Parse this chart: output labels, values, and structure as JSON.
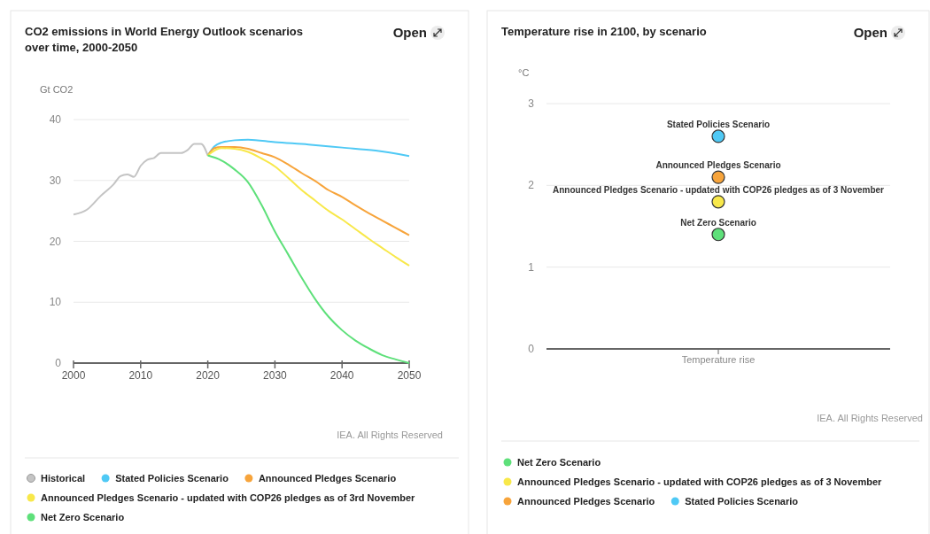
{
  "chart_data": [
    {
      "type": "line",
      "title": "CO2 emissions in World Energy Outlook scenarios over time, 2000-2050",
      "ylabel": "Gt CO2",
      "annotations": [
        "Open",
        "IEA. All Rights Reserved"
      ],
      "xlim": [
        2000,
        2050
      ],
      "xticks": [
        2000,
        2010,
        2020,
        2030,
        2040,
        2050
      ],
      "ylim": [
        0,
        40
      ],
      "yticks": [
        0,
        10,
        20,
        30,
        40
      ],
      "grid": "y",
      "legend": "bottom",
      "marker": "none",
      "line_style": "solid",
      "series": [
        {
          "name": "Historical",
          "color": "#c4c4c4",
          "x": [
            2000,
            2002,
            2004,
            2006,
            2007,
            2008,
            2009,
            2010,
            2011,
            2012,
            2013,
            2014,
            2015,
            2016,
            2017,
            2018,
            2019,
            2020
          ],
          "values": [
            24.4,
            25.2,
            27.4,
            29.4,
            30.7,
            31.0,
            30.6,
            32.4,
            33.4,
            33.7,
            34.5,
            34.5,
            34.5,
            34.5,
            35.0,
            36.0,
            36.0,
            34.1
          ]
        },
        {
          "name": "Stated Policies Scenario",
          "color": "#4fc9f5",
          "x": [
            2020,
            2021,
            2022,
            2024,
            2026,
            2030,
            2035,
            2040,
            2045,
            2050
          ],
          "values": [
            34.1,
            35.6,
            36.2,
            36.6,
            36.7,
            36.3,
            35.9,
            35.4,
            34.9,
            34.0
          ]
        },
        {
          "name": "Announced Pledges Scenario",
          "color": "#f7a43b",
          "x": [
            2020,
            2021,
            2022,
            2024,
            2026,
            2028,
            2030,
            2032,
            2034,
            2036,
            2038,
            2040,
            2042,
            2044,
            2046,
            2048,
            2050
          ],
          "values": [
            34.1,
            35.3,
            35.5,
            35.5,
            35.2,
            34.5,
            33.8,
            32.6,
            31.2,
            29.9,
            28.4,
            27.3,
            25.9,
            24.6,
            23.4,
            22.2,
            21.0
          ]
        },
        {
          "name": "Announced Pledges Scenario - updated with COP26 pledges as of 3rd November",
          "color": "#f8e84a",
          "x": [
            2020,
            2022,
            2024,
            2026,
            2028,
            2030,
            2032,
            2034,
            2036,
            2038,
            2040,
            2042,
            2044,
            2046,
            2048,
            2050
          ],
          "values": [
            34.1,
            35.3,
            35.2,
            34.7,
            33.6,
            32.3,
            30.4,
            28.4,
            26.7,
            25.0,
            23.6,
            22.0,
            20.4,
            18.9,
            17.4,
            16.0
          ]
        },
        {
          "name": "Net Zero Scenario",
          "color": "#5ee07a",
          "x": [
            2020,
            2022,
            2024,
            2026,
            2028,
            2030,
            2032,
            2034,
            2036,
            2038,
            2040,
            2042,
            2044,
            2046,
            2048,
            2050
          ],
          "values": [
            34.1,
            33.3,
            31.8,
            29.7,
            26.0,
            21.6,
            17.8,
            14.0,
            10.5,
            7.6,
            5.4,
            3.7,
            2.4,
            1.3,
            0.6,
            0
          ]
        }
      ]
    },
    {
      "type": "scatter",
      "title": "Temperature rise in 2100, by scenario",
      "ylabel": "°C",
      "annotations": [
        "Open",
        "IEA. All Rights Reserved"
      ],
      "categories": [
        "Temperature rise"
      ],
      "ylim": [
        0,
        3
      ],
      "yticks": [
        0,
        1,
        2,
        3
      ],
      "grid": "y",
      "legend": "bottom",
      "marker": "circle",
      "series": [
        {
          "name": "Net Zero Scenario",
          "color": "#5ee07a",
          "values": [
            1.4
          ]
        },
        {
          "name": "Announced Pledges Scenario - updated with COP26 pledges as of 3 November",
          "color": "#f8e84a",
          "values": [
            1.8
          ]
        },
        {
          "name": "Announced Pledges Scenario",
          "color": "#f7a43b",
          "values": [
            2.1
          ]
        },
        {
          "name": "Stated Policies Scenario",
          "color": "#4fc9f5",
          "values": [
            2.6
          ]
        }
      ]
    }
  ]
}
